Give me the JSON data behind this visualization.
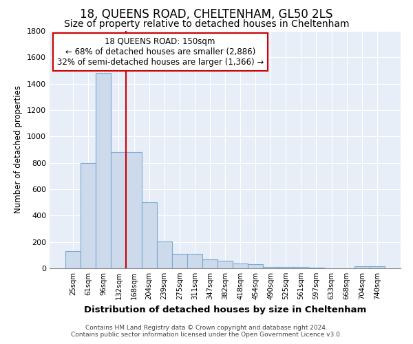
{
  "title": "18, QUEENS ROAD, CHELTENHAM, GL50 2LS",
  "subtitle": "Size of property relative to detached houses in Cheltenham",
  "xlabel": "Distribution of detached houses by size in Cheltenham",
  "ylabel": "Number of detached properties",
  "categories": [
    "25sqm",
    "61sqm",
    "96sqm",
    "132sqm",
    "168sqm",
    "204sqm",
    "239sqm",
    "275sqm",
    "311sqm",
    "347sqm",
    "382sqm",
    "418sqm",
    "454sqm",
    "490sqm",
    "525sqm",
    "561sqm",
    "597sqm",
    "633sqm",
    "668sqm",
    "704sqm",
    "740sqm"
  ],
  "values": [
    130,
    800,
    1480,
    880,
    880,
    500,
    205,
    110,
    110,
    70,
    55,
    35,
    30,
    10,
    10,
    8,
    5,
    0,
    0,
    15,
    15
  ],
  "bar_color": "#ccdaec",
  "bar_edge_color": "#7aaad0",
  "red_line_x": 3.5,
  "annotation_title": "18 QUEENS ROAD: 150sqm",
  "annotation_line1": "← 68% of detached houses are smaller (2,886)",
  "annotation_line2": "32% of semi-detached houses are larger (1,366) →",
  "annotation_box_color": "#ffffff",
  "annotation_box_edge": "#cc0000",
  "ylim": [
    0,
    1800
  ],
  "yticks": [
    0,
    200,
    400,
    600,
    800,
    1000,
    1200,
    1400,
    1600,
    1800
  ],
  "bg_color": "#e8eef8",
  "footer_line1": "Contains HM Land Registry data © Crown copyright and database right 2024.",
  "footer_line2": "Contains public sector information licensed under the Open Government Licence v3.0.",
  "title_fontsize": 12,
  "subtitle_fontsize": 10
}
